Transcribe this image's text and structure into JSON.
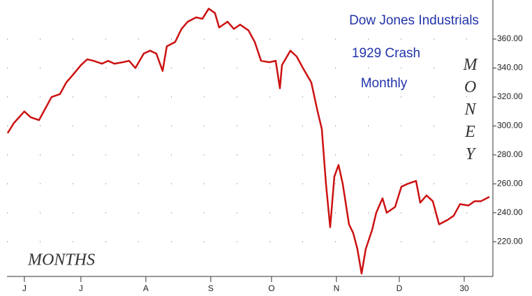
{
  "chart_data": {
    "type": "line",
    "title": "Dow Jones Industrials",
    "subtitle": "1929 Crash",
    "annotations": [
      "Monthly"
    ],
    "y_label": "MONEY",
    "x_label": "MONTHS",
    "x": [
      -8,
      -5,
      0,
      3,
      7,
      10,
      13,
      17,
      20,
      23,
      27,
      30,
      33,
      37,
      40,
      43,
      47,
      50,
      53,
      57,
      60,
      63,
      66,
      68,
      72,
      75,
      78,
      82,
      85,
      88,
      91,
      93,
      97,
      100,
      103,
      107,
      110,
      113,
      117,
      120,
      122,
      123,
      127,
      130,
      133,
      137,
      140,
      142,
      144,
      146,
      148,
      150,
      152,
      155,
      157,
      159,
      161,
      163,
      166,
      168,
      171,
      173,
      177,
      180,
      183,
      187,
      189,
      192,
      195,
      198,
      202,
      205,
      208,
      212,
      215,
      218,
      222
    ],
    "series": [
      {
        "name": "Dow Jones Industrials",
        "color": "#cc1111",
        "values": [
          295,
          302,
          310,
          306,
          304,
          312,
          320,
          322,
          330,
          335,
          342,
          346,
          345,
          343,
          345,
          343,
          344,
          345,
          340,
          350,
          352,
          350,
          338,
          355,
          358,
          367,
          372,
          375,
          374,
          381,
          378,
          368,
          372,
          367,
          370,
          366,
          358,
          345,
          344,
          345,
          326,
          342,
          352,
          348,
          340,
          330,
          310,
          298,
          260,
          230,
          265,
          273,
          260,
          232,
          226,
          215,
          198,
          215,
          228,
          240,
          250,
          240,
          244,
          258,
          260,
          262,
          247,
          252,
          248,
          232,
          235,
          238,
          246,
          245,
          248,
          248,
          251
        ]
      }
    ],
    "xlim": [
      -8.3,
      223.7
    ],
    "xticks": [
      {
        "value": 0,
        "label": "J"
      },
      {
        "value": 27,
        "label": "J"
      },
      {
        "value": 58,
        "label": "A"
      },
      {
        "value": 89,
        "label": "S"
      },
      {
        "value": 118,
        "label": "O"
      },
      {
        "value": 149,
        "label": "N"
      },
      {
        "value": 179,
        "label": "D"
      },
      {
        "value": 210,
        "label": "30"
      }
    ],
    "ylim": [
      196,
      387
    ],
    "yticks": [
      {
        "value": 220,
        "label": "220.00"
      },
      {
        "value": 240,
        "label": "240.00"
      },
      {
        "value": 260,
        "label": "260.00"
      },
      {
        "value": 280,
        "label": "280.00"
      },
      {
        "value": 300,
        "label": "300.00"
      },
      {
        "value": 320,
        "label": "320.00"
      },
      {
        "value": 340,
        "label": "340.00"
      },
      {
        "value": 360,
        "label": "360.00"
      }
    ],
    "grid": true
  }
}
